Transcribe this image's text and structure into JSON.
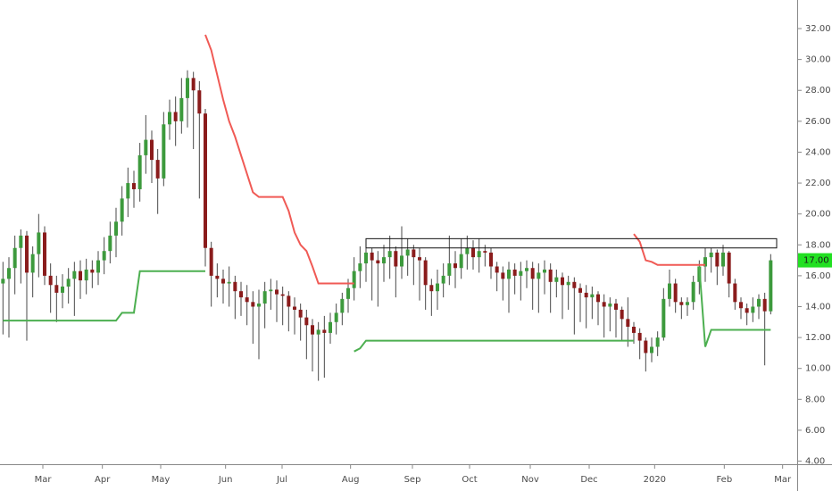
{
  "chart_data": {
    "type": "candlestick",
    "xlim": [
      -0.5,
      133
    ],
    "xticks": [
      {
        "value": 6.7,
        "label": "Mar"
      },
      {
        "value": 16.7,
        "label": "Apr"
      },
      {
        "value": 26.5,
        "label": "May"
      },
      {
        "value": 37.4,
        "label": "Jun"
      },
      {
        "value": 46.9,
        "label": "Jul"
      },
      {
        "value": 58.4,
        "label": "Aug"
      },
      {
        "value": 68.8,
        "label": "Sep"
      },
      {
        "value": 78.4,
        "label": "Oct"
      },
      {
        "value": 88.6,
        "label": "Nov"
      },
      {
        "value": 98.5,
        "label": "Dec"
      },
      {
        "value": 109.5,
        "label": "2020"
      },
      {
        "value": 121.2,
        "label": "Feb"
      },
      {
        "value": 131,
        "label": "Mar"
      }
    ],
    "ylim": [
      3.8,
      33.85
    ],
    "yticks": [
      {
        "value": 4,
        "label": "4.00"
      },
      {
        "value": 6,
        "label": "6.00"
      },
      {
        "value": 8,
        "label": "8.00"
      },
      {
        "value": 10,
        "label": "10.00"
      },
      {
        "value": 12,
        "label": "12.00"
      },
      {
        "value": 14,
        "label": "14.00"
      },
      {
        "value": 16,
        "label": "16.00"
      },
      {
        "value": 18,
        "label": "18.00"
      },
      {
        "value": 20,
        "label": "20.00"
      },
      {
        "value": 22,
        "label": "22.00"
      },
      {
        "value": 24,
        "label": "24.00"
      },
      {
        "value": 26,
        "label": "26.00"
      },
      {
        "value": 28,
        "label": "28.00"
      },
      {
        "value": 30,
        "label": "30.00"
      },
      {
        "value": 32,
        "label": "32.00"
      }
    ],
    "candles": {
      "up_color": "#3d9a3d",
      "down_color": "#8a1c1c",
      "wick_color": "#4a4a4a",
      "open": [
        15.5,
        15.8,
        16.5,
        17.8,
        18.6,
        16.2,
        17.4,
        18.8,
        16.0,
        15.4,
        14.9,
        15.3,
        15.8,
        16.3,
        15.7,
        16.4,
        16.2,
        17.0,
        17.6,
        18.6,
        19.5,
        21.0,
        22.0,
        21.6,
        23.8,
        24.8,
        23.5,
        22.3,
        25.8,
        26.6,
        26.0,
        27.5,
        28.8,
        28.0,
        26.5,
        17.8,
        16.0,
        15.8,
        15.5,
        15.6,
        15.0,
        14.6,
        14.3,
        14.0,
        14.2,
        15.0,
        15.1,
        14.8,
        14.7,
        14.0,
        13.8,
        13.3,
        12.8,
        12.2,
        12.5,
        12.3,
        13.0,
        13.6,
        14.5,
        15.2,
        16.3,
        16.8,
        17.5,
        17.0,
        16.8,
        17.2,
        17.6,
        16.6,
        17.3,
        17.7,
        17.2,
        17.0,
        15.4,
        15.0,
        15.5,
        16.0,
        16.8,
        16.5,
        17.4,
        17.8,
        17.2,
        17.6,
        17.5,
        16.6,
        16.2,
        15.8,
        16.4,
        16.0,
        16.3,
        16.5,
        15.8,
        16.2,
        16.4,
        15.6,
        15.9,
        15.4,
        15.6,
        15.2,
        14.9,
        14.6,
        14.8,
        14.3,
        14.0,
        14.2,
        13.8,
        13.2,
        12.7,
        12.3,
        11.8,
        11.0,
        11.4,
        12.0,
        14.5,
        15.5,
        14.3,
        14.1,
        14.3,
        15.6,
        16.6,
        17.2,
        17.5,
        16.6,
        17.5,
        15.5,
        14.3,
        13.9,
        13.6,
        14.0,
        14.5,
        13.7
      ],
      "high": [
        16.9,
        17.2,
        18.6,
        19.0,
        18.9,
        17.9,
        20.0,
        19.2,
        16.8,
        16.0,
        16.1,
        16.5,
        16.9,
        17.0,
        17.1,
        17.0,
        17.6,
        18.5,
        19.5,
        20.4,
        21.8,
        23.0,
        22.8,
        24.6,
        26.4,
        25.4,
        24.2,
        26.6,
        27.4,
        27.6,
        28.8,
        29.3,
        29.2,
        28.6,
        26.8,
        18.2,
        16.8,
        16.4,
        16.6,
        16.0,
        15.6,
        15.4,
        15.0,
        15.1,
        15.6,
        15.8,
        15.7,
        15.3,
        15.0,
        14.6,
        14.2,
        13.8,
        13.2,
        13.0,
        13.4,
        13.6,
        14.2,
        14.9,
        15.8,
        17.2,
        17.9,
        18.2,
        17.8,
        17.6,
        18.0,
        18.6,
        17.9,
        19.2,
        18.4,
        18.0,
        17.8,
        17.2,
        15.8,
        16.4,
        16.8,
        18.6,
        17.6,
        18.4,
        18.6,
        18.3,
        18.4,
        18.0,
        17.8,
        16.9,
        16.6,
        16.9,
        16.8,
        16.9,
        17.0,
        16.9,
        16.8,
        17.0,
        16.8,
        16.4,
        16.2,
        16.0,
        15.9,
        15.5,
        15.4,
        15.3,
        15.0,
        14.8,
        14.6,
        14.5,
        14.0,
        14.6,
        13.0,
        12.6,
        12.0,
        12.0,
        12.4,
        15.2,
        16.4,
        15.8,
        14.6,
        14.6,
        16.0,
        17.0,
        17.8,
        17.8,
        17.7,
        18.0,
        17.6,
        15.8,
        14.6,
        14.2,
        14.6,
        14.8,
        14.9,
        17.4
      ],
      "low": [
        12.2,
        12.0,
        14.8,
        15.5,
        11.8,
        14.6,
        15.9,
        15.4,
        13.6,
        13.0,
        13.9,
        14.2,
        13.4,
        14.5,
        14.8,
        15.2,
        15.4,
        16.1,
        16.8,
        17.2,
        18.6,
        19.8,
        20.4,
        20.8,
        22.6,
        22.0,
        20.0,
        21.8,
        24.8,
        24.4,
        25.2,
        25.6,
        24.2,
        21.0,
        16.6,
        14.0,
        14.6,
        14.2,
        14.0,
        13.2,
        13.4,
        12.8,
        11.6,
        10.6,
        12.6,
        13.8,
        13.0,
        12.8,
        12.4,
        12.2,
        11.8,
        10.6,
        9.8,
        9.2,
        9.4,
        11.6,
        12.2,
        12.8,
        13.6,
        14.4,
        15.2,
        15.6,
        14.4,
        14.0,
        15.6,
        15.8,
        14.6,
        15.8,
        16.0,
        15.4,
        14.4,
        13.8,
        13.4,
        13.8,
        14.6,
        15.4,
        15.2,
        15.8,
        16.4,
        16.4,
        16.2,
        16.6,
        15.8,
        15.0,
        14.4,
        13.6,
        14.8,
        14.4,
        15.2,
        13.8,
        13.6,
        14.8,
        13.6,
        14.6,
        13.2,
        13.8,
        12.2,
        13.0,
        12.6,
        13.2,
        12.8,
        12.0,
        12.4,
        12.0,
        11.8,
        11.4,
        11.6,
        10.6,
        9.8,
        10.4,
        10.8,
        11.8,
        14.0,
        13.6,
        13.2,
        13.4,
        13.8,
        14.8,
        15.6,
        16.2,
        15.4,
        16.0,
        14.6,
        13.8,
        13.2,
        12.8,
        13.0,
        13.2,
        10.2,
        13.5
      ],
      "close": [
        15.8,
        16.5,
        17.8,
        18.6,
        16.2,
        17.4,
        18.8,
        16.0,
        15.4,
        14.9,
        15.3,
        15.8,
        16.3,
        15.7,
        16.4,
        16.2,
        17.0,
        17.6,
        18.6,
        19.5,
        21.0,
        22.0,
        21.6,
        23.8,
        24.8,
        23.5,
        22.3,
        25.8,
        26.6,
        26.0,
        27.5,
        28.8,
        28.0,
        26.5,
        17.8,
        16.0,
        15.8,
        15.5,
        15.6,
        15.0,
        14.6,
        14.3,
        14.0,
        14.2,
        15.0,
        15.1,
        14.8,
        14.7,
        14.0,
        13.8,
        13.3,
        12.8,
        12.2,
        12.5,
        12.3,
        13.0,
        13.6,
        14.5,
        15.2,
        16.3,
        16.8,
        17.5,
        17.0,
        16.8,
        17.2,
        17.6,
        16.6,
        17.3,
        17.7,
        17.2,
        17.0,
        15.4,
        15.0,
        15.5,
        16.0,
        16.8,
        16.5,
        17.4,
        17.8,
        17.2,
        17.6,
        17.5,
        16.6,
        16.2,
        15.8,
        16.4,
        16.0,
        16.3,
        16.5,
        15.8,
        16.2,
        16.4,
        15.6,
        15.9,
        15.4,
        15.6,
        15.2,
        14.9,
        14.6,
        14.8,
        14.3,
        14.0,
        14.2,
        13.8,
        13.2,
        12.7,
        12.3,
        11.8,
        11.0,
        11.4,
        12.0,
        14.5,
        15.5,
        14.3,
        14.1,
        14.3,
        15.6,
        16.6,
        17.2,
        17.5,
        16.6,
        17.5,
        15.5,
        14.3,
        13.9,
        13.6,
        14.0,
        14.5,
        13.7,
        17.0
      ]
    },
    "lines": [
      {
        "color": "#f05a55",
        "values": [
          null,
          null,
          null,
          null,
          null,
          null,
          null,
          null,
          null,
          null,
          null,
          null,
          null,
          null,
          null,
          null,
          null,
          null,
          null,
          null,
          null,
          null,
          null,
          null,
          null,
          null,
          null,
          null,
          null,
          null,
          null,
          null,
          null,
          null,
          31.6,
          30.6,
          29.0,
          27.4,
          26.0,
          25.0,
          23.8,
          22.6,
          21.4,
          21.1,
          21.1,
          21.1,
          21.1,
          21.1,
          20.2,
          18.8,
          18.0,
          17.6,
          16.6,
          15.5,
          15.5,
          15.5,
          15.5,
          15.5,
          15.5,
          15.5,
          null,
          null,
          null,
          null,
          null,
          null,
          null,
          null,
          null,
          null,
          null,
          null,
          null,
          null,
          null,
          null,
          null,
          null,
          null,
          null,
          null,
          null,
          null,
          null,
          null,
          null,
          null,
          null,
          null,
          null,
          null,
          null,
          null,
          null,
          null,
          null,
          null,
          null,
          null,
          null,
          null,
          null,
          null,
          null,
          null,
          null,
          18.7,
          18.2,
          17.0,
          16.9,
          16.7,
          16.7,
          16.7,
          16.7,
          16.7,
          16.7,
          16.7,
          16.7,
          16.7,
          null,
          null,
          null,
          null,
          null,
          null,
          null,
          null,
          null,
          null,
          null
        ]
      },
      {
        "color": "#4caf50",
        "values": [
          13.1,
          13.1,
          13.1,
          13.1,
          13.1,
          13.1,
          13.1,
          13.1,
          13.1,
          13.1,
          13.1,
          13.1,
          13.1,
          13.1,
          13.1,
          13.1,
          13.1,
          13.1,
          13.1,
          13.1,
          13.6,
          13.6,
          13.6,
          16.3,
          16.3,
          16.3,
          16.3,
          16.3,
          16.3,
          16.3,
          16.3,
          16.3,
          16.3,
          16.3,
          16.3,
          null,
          null,
          null,
          null,
          null,
          null,
          null,
          null,
          null,
          null,
          null,
          null,
          null,
          null,
          null,
          null,
          null,
          null,
          null,
          null,
          null,
          null,
          null,
          null,
          11.1,
          11.3,
          11.8,
          11.8,
          11.8,
          11.8,
          11.8,
          11.8,
          11.8,
          11.8,
          11.8,
          11.8,
          11.8,
          11.8,
          11.8,
          11.8,
          11.8,
          11.8,
          11.8,
          11.8,
          11.8,
          11.8,
          11.8,
          11.8,
          11.8,
          11.8,
          11.8,
          11.8,
          11.8,
          11.8,
          11.8,
          11.8,
          11.8,
          11.8,
          11.8,
          11.8,
          11.8,
          11.8,
          11.8,
          11.8,
          11.8,
          11.8,
          11.8,
          11.8,
          11.8,
          11.8,
          11.8,
          11.8,
          null,
          null,
          null,
          null,
          null,
          null,
          null,
          null,
          null,
          null,
          16.6,
          11.4,
          12.5,
          12.5,
          12.5,
          12.5,
          12.5,
          12.5,
          12.5,
          12.5,
          12.5,
          12.5,
          12.5
        ]
      }
    ],
    "range_box": {
      "x": [
        61,
        130
      ],
      "y": [
        17.8,
        18.4
      ]
    },
    "last_price": {
      "value": 17,
      "label": "17.00",
      "color": "#22e022"
    }
  }
}
